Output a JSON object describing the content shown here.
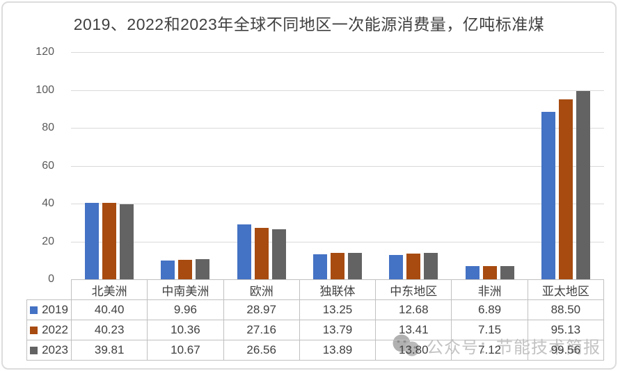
{
  "chart_data": {
    "type": "bar",
    "title": "2019、2022和2023年全球不同地区一次能源消费量，亿吨标准煤",
    "unit": "亿吨标准煤",
    "categories": [
      "北美洲",
      "中南美洲",
      "欧洲",
      "独联体",
      "中东地区",
      "非洲",
      "亚太地区"
    ],
    "series": [
      {
        "name": "2019",
        "color": "#4472c4",
        "values": [
          40.4,
          9.96,
          28.97,
          13.25,
          12.68,
          6.89,
          88.5
        ]
      },
      {
        "name": "2022",
        "color": "#a74b10",
        "values": [
          40.23,
          10.36,
          27.16,
          13.79,
          13.41,
          7.15,
          95.13
        ]
      },
      {
        "name": "2023",
        "color": "#636363",
        "values": [
          39.81,
          10.67,
          26.56,
          13.89,
          13.8,
          7.12,
          99.56
        ]
      }
    ],
    "ylim": [
      0,
      120
    ],
    "yticks": [
      0,
      20,
      40,
      60,
      80,
      100,
      120
    ],
    "grid": true,
    "legend_position": "data-table-left",
    "data_table": true
  },
  "watermark": {
    "icon": "wechat-bubbles-icon",
    "text": "公众号：节能技术简报"
  },
  "colors": {
    "gridline": "#d9d9d9",
    "table_border": "#c0c0c0",
    "title_text": "#404040",
    "axis_text": "#595959",
    "table_text": "#404040",
    "watermark_text": "#c3c3c3",
    "background": "#ffffff"
  }
}
